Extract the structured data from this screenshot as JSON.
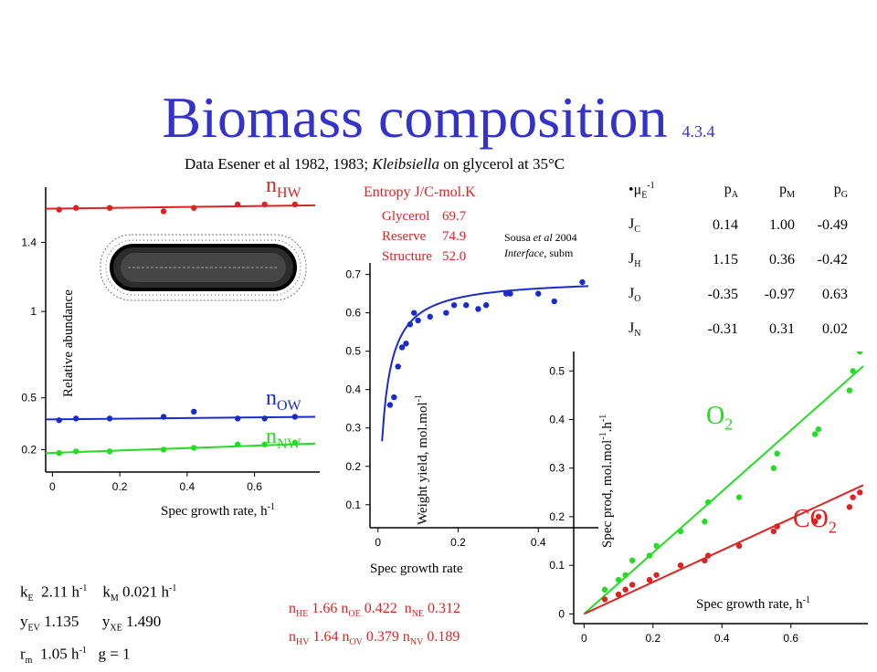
{
  "title": "Biomass composition",
  "section": "4.3.4",
  "subtitle": "Data Esener et al 1982, 1983; Kleibsiella on glycerol at 35°C",
  "subtitle_parts": {
    "pre": "Data Esener et al 1982, 1983; ",
    "organism": "Kleibsiella",
    "post": " on glycerol at 35°C"
  },
  "entropy": {
    "heading": "Entropy J/C-mol.K",
    "rows": [
      {
        "label": "Glycerol",
        "value": "69.7"
      },
      {
        "label": "Reserve",
        "value": "74.9"
      },
      {
        "label": "Structure",
        "value": "52.0"
      }
    ]
  },
  "citation": {
    "line1_pre": "Sousa ",
    "line1_it": "et al",
    "line1_post": " 2004",
    "line2_it": "Interface",
    "line2_post": ", subm"
  },
  "coef_table": {
    "header": [
      "μE-1",
      "pA",
      "pM",
      "pG"
    ],
    "rows": [
      {
        "label": "JC",
        "values": [
          "0.14",
          "1.00",
          "-0.49"
        ]
      },
      {
        "label": "JH",
        "values": [
          "1.15",
          "0.36",
          "-0.42"
        ]
      },
      {
        "label": "JO",
        "values": [
          "-0.35",
          "-0.97",
          "0.63"
        ]
      },
      {
        "label": "JN",
        "values": [
          "-0.31",
          "0.31",
          "0.02"
        ]
      }
    ]
  },
  "params": {
    "kE": "2.11",
    "kM": "0.021",
    "yEV": "1.135",
    "yXE": "1.490",
    "rm": "1.05",
    "g": "1",
    "unit": "h",
    "unit_exp": "-1"
  },
  "n_values": {
    "nHE": "1.66",
    "nOE": "0.422",
    "nNE": "0.312",
    "nHV": "1.64",
    "nOV": "0.379",
    "nNV": "0.189"
  },
  "colors": {
    "title": "#3333cc",
    "red": "#dd2222",
    "blue": "#1a2bcc",
    "green": "#22dd22"
  },
  "chart_data": [
    {
      "type": "scatter",
      "xlabel": "Spec growth rate, h-1",
      "ylabel": "Relative abundance",
      "xlim": [
        -0.02,
        0.78
      ],
      "ylim": [
        0.07,
        1.72
      ],
      "xticks": [
        "0",
        "0.2",
        "0.4",
        "0.6"
      ],
      "yticks": [
        "0.2",
        "0.5",
        "1",
        "1.4"
      ],
      "series": [
        {
          "name": "nHW",
          "color": "#dd2222",
          "x": [
            0.02,
            0.07,
            0.17,
            0.33,
            0.42,
            0.55,
            0.63,
            0.72
          ],
          "y": [
            1.59,
            1.6,
            1.6,
            1.58,
            1.6,
            1.62,
            1.62,
            1.62
          ],
          "fit": [
            1.595,
            1.615
          ]
        },
        {
          "name": "nOW",
          "color": "#1a2bcc",
          "x": [
            0.02,
            0.07,
            0.17,
            0.33,
            0.42,
            0.55,
            0.63,
            0.72
          ],
          "y": [
            0.37,
            0.38,
            0.38,
            0.39,
            0.42,
            0.38,
            0.38,
            0.39
          ],
          "fit": [
            0.375,
            0.39
          ]
        },
        {
          "name": "nNW",
          "color": "#22dd22",
          "x": [
            0.02,
            0.07,
            0.17,
            0.33,
            0.42,
            0.55,
            0.63,
            0.72
          ],
          "y": [
            0.18,
            0.19,
            0.19,
            0.2,
            0.21,
            0.23,
            0.23,
            0.24
          ],
          "fit": [
            0.18,
            0.235
          ]
        }
      ]
    },
    {
      "type": "scatter",
      "xlabel": "Spec growth rate",
      "ylabel": "Weight yield, mol.mol-1",
      "xlim": [
        -0.02,
        0.55
      ],
      "ylim": [
        0.04,
        0.73
      ],
      "xticks": [
        "0",
        "0.2",
        "0.4"
      ],
      "yticks": [
        "0.1",
        "0.2",
        "0.3",
        "0.4",
        "0.5",
        "0.6",
        "0.7"
      ],
      "series": [
        {
          "name": "yield",
          "color": "#1a2bcc",
          "x": [
            0.03,
            0.04,
            0.05,
            0.06,
            0.07,
            0.08,
            0.09,
            0.1,
            0.13,
            0.17,
            0.19,
            0.22,
            0.25,
            0.27,
            0.32,
            0.33,
            0.4,
            0.44,
            0.51
          ],
          "y": [
            0.36,
            0.38,
            0.46,
            0.51,
            0.52,
            0.57,
            0.6,
            0.58,
            0.59,
            0.6,
            0.62,
            0.62,
            0.61,
            0.62,
            0.65,
            0.65,
            0.65,
            0.63,
            0.68
          ]
        }
      ]
    },
    {
      "type": "scatter",
      "xlabel": "Spec growth rate, h-1",
      "ylabel": "Spec prod, mol.mol-1.h-1",
      "xlim": [
        -0.03,
        0.81
      ],
      "ylim": [
        -0.02,
        0.54
      ],
      "xticks": [
        "0",
        "0.2",
        "0.4",
        "0.6"
      ],
      "yticks": [
        "0",
        "0.1",
        "0.2",
        "0.3",
        "0.4",
        "0.5"
      ],
      "series": [
        {
          "name": "O2",
          "color": "#22dd22",
          "x": [
            0.06,
            0.1,
            0.12,
            0.14,
            0.19,
            0.21,
            0.28,
            0.35,
            0.36,
            0.45,
            0.55,
            0.56,
            0.67,
            0.68,
            0.77,
            0.78,
            0.8
          ],
          "y": [
            0.05,
            0.07,
            0.08,
            0.11,
            0.12,
            0.14,
            0.17,
            0.19,
            0.23,
            0.24,
            0.3,
            0.33,
            0.37,
            0.38,
            0.46,
            0.5,
            0.54
          ],
          "fit": [
            0.0,
            0.51
          ]
        },
        {
          "name": "CO2",
          "color": "#dd2222",
          "x": [
            0.06,
            0.1,
            0.12,
            0.14,
            0.19,
            0.21,
            0.28,
            0.35,
            0.36,
            0.45,
            0.55,
            0.56,
            0.67,
            0.68,
            0.77,
            0.78,
            0.8
          ],
          "y": [
            0.03,
            0.04,
            0.05,
            0.06,
            0.07,
            0.08,
            0.1,
            0.11,
            0.12,
            0.14,
            0.17,
            0.18,
            0.19,
            0.2,
            0.22,
            0.24,
            0.25
          ],
          "fit": [
            0.0,
            0.265
          ]
        }
      ]
    }
  ]
}
